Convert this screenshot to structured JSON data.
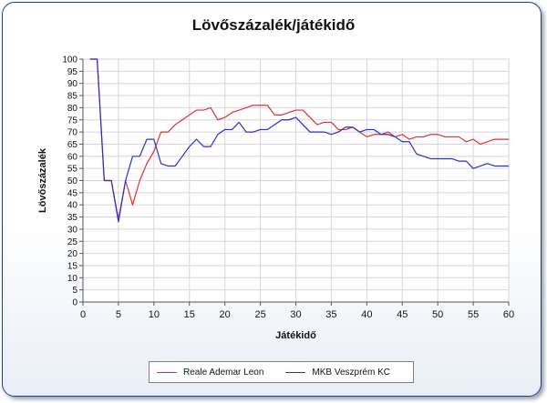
{
  "chart_data": {
    "type": "line",
    "title": "Lövőszázalék/játékidő",
    "xlabel": "Játékidő",
    "ylabel": "Lövőszázalék",
    "xlim": [
      0,
      60
    ],
    "ylim": [
      0,
      100
    ],
    "xticks": [
      0,
      5,
      10,
      15,
      20,
      25,
      30,
      35,
      40,
      45,
      50,
      55,
      60
    ],
    "yticks": [
      0,
      5,
      10,
      15,
      20,
      25,
      30,
      35,
      40,
      45,
      50,
      55,
      60,
      65,
      70,
      75,
      80,
      85,
      90,
      95,
      100
    ],
    "grid": true,
    "legend_position": "bottom",
    "series": [
      {
        "name": "Reale Ademar Leon",
        "color": "#e03030",
        "x": [
          1,
          2,
          3,
          4,
          5,
          6,
          7,
          8,
          9,
          10,
          11,
          12,
          13,
          14,
          15,
          16,
          17,
          18,
          19,
          20,
          21,
          22,
          23,
          24,
          25,
          26,
          27,
          28,
          29,
          30,
          31,
          32,
          33,
          34,
          35,
          36,
          37,
          38,
          39,
          40,
          41,
          42,
          43,
          44,
          45,
          46,
          47,
          48,
          49,
          50,
          51,
          52,
          53,
          54,
          55,
          56,
          57,
          58,
          59,
          60
        ],
        "values": [
          100,
          100,
          50,
          50,
          34,
          50,
          40,
          50,
          57,
          62,
          70,
          70,
          73,
          75,
          77,
          79,
          79,
          80,
          75,
          76,
          78,
          79,
          80,
          81,
          81,
          81,
          77,
          77,
          78,
          79,
          79,
          76,
          73,
          74,
          74,
          71,
          71,
          72,
          70,
          68,
          69,
          69,
          70,
          68,
          69,
          67,
          68,
          68,
          69,
          69,
          68,
          68,
          68,
          66,
          67,
          65,
          66,
          67,
          67,
          67
        ]
      },
      {
        "name": "MKB Veszprém KC",
        "color": "#2a2fc8",
        "x": [
          1,
          2,
          3,
          4,
          5,
          6,
          7,
          8,
          9,
          10,
          11,
          12,
          13,
          14,
          15,
          16,
          17,
          18,
          19,
          20,
          21,
          22,
          23,
          24,
          25,
          26,
          27,
          28,
          29,
          30,
          31,
          32,
          33,
          34,
          35,
          36,
          37,
          38,
          39,
          40,
          41,
          42,
          43,
          44,
          45,
          46,
          47,
          48,
          49,
          50,
          51,
          52,
          53,
          54,
          55,
          56,
          57,
          58,
          59,
          60
        ],
        "values": [
          100,
          100,
          50,
          50,
          33,
          50,
          60,
          60,
          67,
          67,
          57,
          56,
          56,
          60,
          64,
          67,
          64,
          64,
          69,
          71,
          71,
          74,
          70,
          70,
          71,
          71,
          73,
          75,
          75,
          76,
          73,
          70,
          70,
          70,
          69,
          70,
          72,
          72,
          70,
          71,
          71,
          69,
          69,
          68,
          66,
          66,
          61,
          60,
          59,
          59,
          59,
          59,
          58,
          58,
          55,
          56,
          57,
          56,
          56,
          56
        ]
      }
    ]
  }
}
